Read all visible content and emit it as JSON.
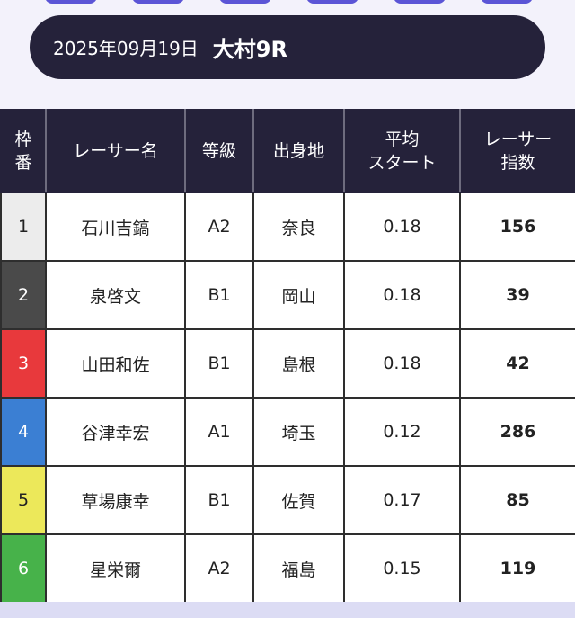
{
  "header": {
    "date": "2025年09月19日",
    "race": "大村9R"
  },
  "table": {
    "columns": [
      "枠\n番",
      "レーサー名",
      "等級",
      "出身地",
      "平均\nスタート",
      "レーサー\n指数"
    ],
    "col_waku_1": "枠",
    "col_waku_2": "番",
    "col_avg_1": "平均",
    "col_avg_2": "スタート",
    "col_idx_1": "レーサー",
    "col_idx_2": "指数",
    "rows": [
      {
        "waku": "1",
        "name": "石川吉鎬",
        "grade": "A2",
        "origin": "奈良",
        "avg_start": "0.18",
        "index": "156"
      },
      {
        "waku": "2",
        "name": "泉啓文",
        "grade": "B1",
        "origin": "岡山",
        "avg_start": "0.18",
        "index": "39"
      },
      {
        "waku": "3",
        "name": "山田和佐",
        "grade": "B1",
        "origin": "島根",
        "avg_start": "0.18",
        "index": "42"
      },
      {
        "waku": "4",
        "name": "谷津幸宏",
        "grade": "A1",
        "origin": "埼玉",
        "avg_start": "0.12",
        "index": "286"
      },
      {
        "waku": "5",
        "name": "草場康幸",
        "grade": "B1",
        "origin": "佐賀",
        "avg_start": "0.17",
        "index": "85"
      },
      {
        "waku": "6",
        "name": "星栄爾",
        "grade": "A2",
        "origin": "福島",
        "avg_start": "0.15",
        "index": "119"
      }
    ]
  },
  "colors": {
    "header_bg": "#25223a",
    "waku_1": "#ececec",
    "waku_2": "#4a4a4a",
    "waku_3": "#e8393c",
    "waku_4": "#3b7fd3",
    "waku_5": "#ece85a",
    "waku_6": "#47b24a"
  }
}
